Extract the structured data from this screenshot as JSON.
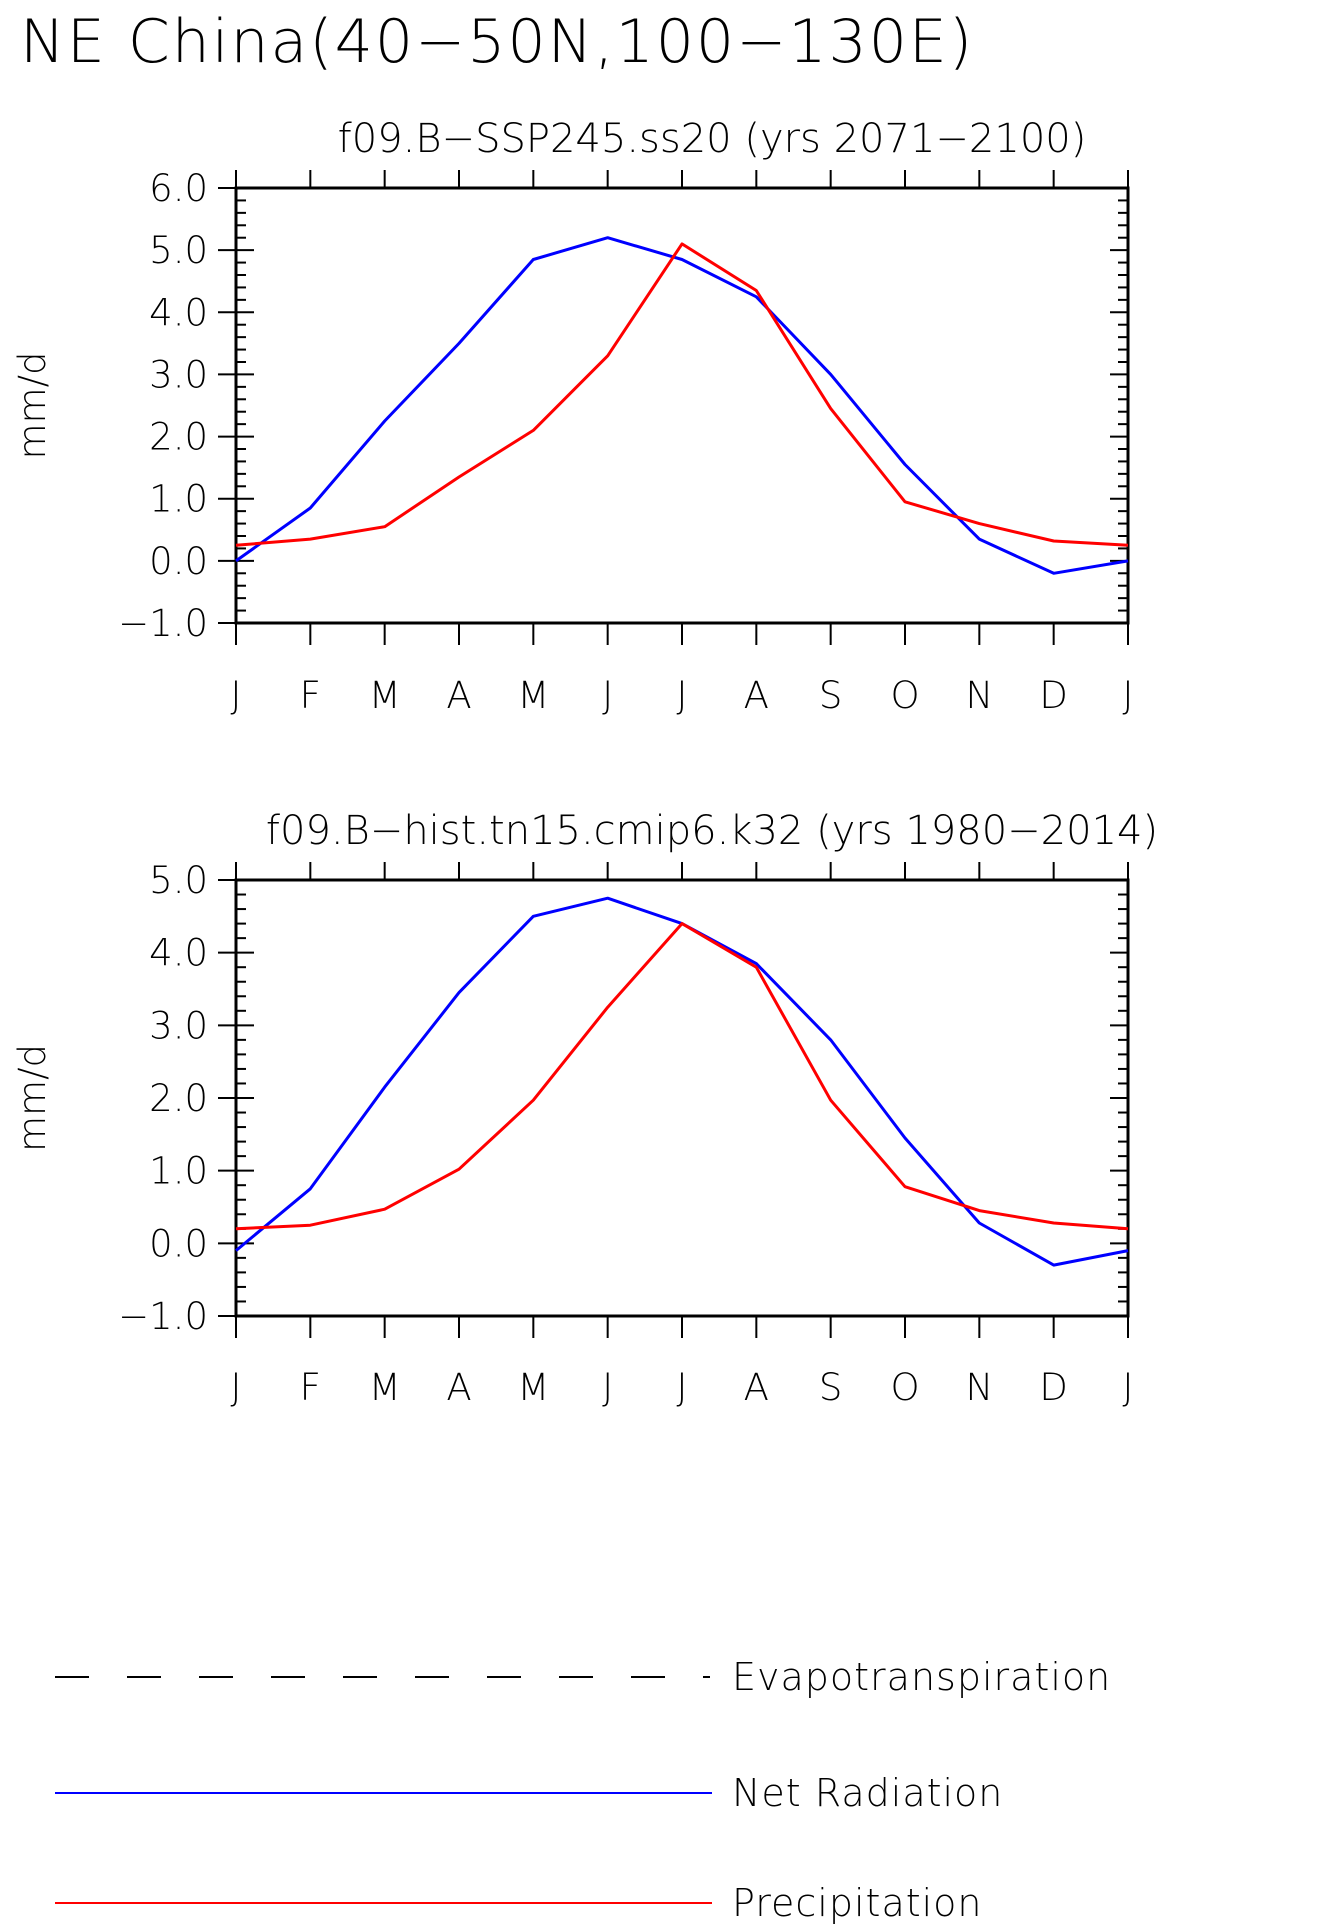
{
  "title": "NE China(40−50N,100−130E)",
  "colors": {
    "net_radiation": "#0000ff",
    "precipitation": "#ff0000",
    "evapotranspiration": "#000000",
    "axes": "#000000"
  },
  "chart_data": [
    {
      "type": "line",
      "title": "f09.B−SSP245.ss20 (yrs 2071−2100)",
      "xlabel": "",
      "ylabel": "mm/d",
      "categories": [
        "J",
        "F",
        "M",
        "A",
        "M",
        "J",
        "J",
        "A",
        "S",
        "O",
        "N",
        "D",
        "J"
      ],
      "yticks": [
        "6.0",
        "5.0",
        "4.0",
        "3.0",
        "2.0",
        "1.0",
        "0.0",
        "−1.0"
      ],
      "ylim": [
        -1.0,
        6.0
      ],
      "grid": false,
      "series": [
        {
          "name": "Net Radiation",
          "color": "#0000ff",
          "values": [
            0.0,
            0.85,
            2.25,
            3.5,
            4.85,
            5.2,
            4.85,
            4.25,
            3.0,
            1.55,
            0.35,
            -0.2,
            0.0
          ]
        },
        {
          "name": "Precipitation",
          "color": "#ff0000",
          "values": [
            0.25,
            0.35,
            0.55,
            1.35,
            2.1,
            3.3,
            5.1,
            4.35,
            2.45,
            0.95,
            0.6,
            0.32,
            0.25
          ]
        }
      ]
    },
    {
      "type": "line",
      "title": "f09.B−hist.tn15.cmip6.k32 (yrs 1980−2014)",
      "xlabel": "",
      "ylabel": "mm/d",
      "categories": [
        "J",
        "F",
        "M",
        "A",
        "M",
        "J",
        "J",
        "A",
        "S",
        "O",
        "N",
        "D",
        "J"
      ],
      "yticks": [
        "5.0",
        "4.0",
        "3.0",
        "2.0",
        "1.0",
        "0.0",
        "−1.0"
      ],
      "ylim": [
        -1.0,
        5.0
      ],
      "grid": false,
      "series": [
        {
          "name": "Net Radiation",
          "color": "#0000ff",
          "values": [
            -0.1,
            0.75,
            2.15,
            3.45,
            4.5,
            4.75,
            4.4,
            3.85,
            2.8,
            1.45,
            0.28,
            -0.3,
            -0.1
          ]
        },
        {
          "name": "Precipitation",
          "color": "#ff0000",
          "values": [
            0.2,
            0.25,
            0.47,
            1.02,
            1.97,
            3.25,
            4.4,
            3.8,
            1.97,
            0.78,
            0.45,
            0.28,
            0.2
          ]
        }
      ]
    }
  ],
  "legend": {
    "placement": "bottom",
    "items": [
      {
        "label": "Evapotranspiration",
        "color": "#000000",
        "style": "dashed"
      },
      {
        "label": "Net Radiation",
        "color": "#0000ff",
        "style": "solid"
      },
      {
        "label": "Precipitation",
        "color": "#ff0000",
        "style": "solid"
      }
    ]
  }
}
